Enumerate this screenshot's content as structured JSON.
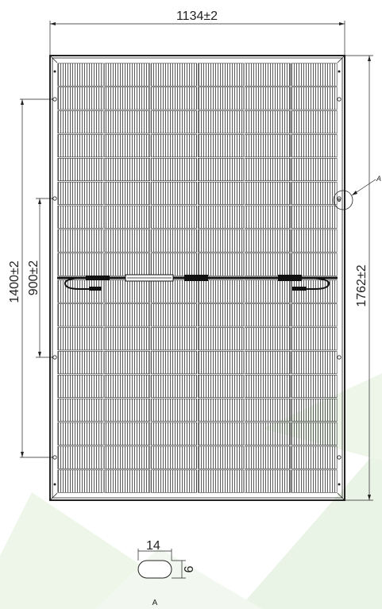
{
  "dimensions": {
    "width": "1134±2",
    "height": "1762±2",
    "mount_outer": "1400±2",
    "mount_inner": "900±2"
  },
  "detail": {
    "callout": "A",
    "label": "A",
    "slot_length": "14",
    "slot_width": "9"
  },
  "panel": {
    "cell_columns": 6,
    "cell_rows": 18,
    "half_split": true
  },
  "colors": {
    "line": "#222222",
    "cell": "#555555",
    "background_accent": "#e7f2e3"
  }
}
